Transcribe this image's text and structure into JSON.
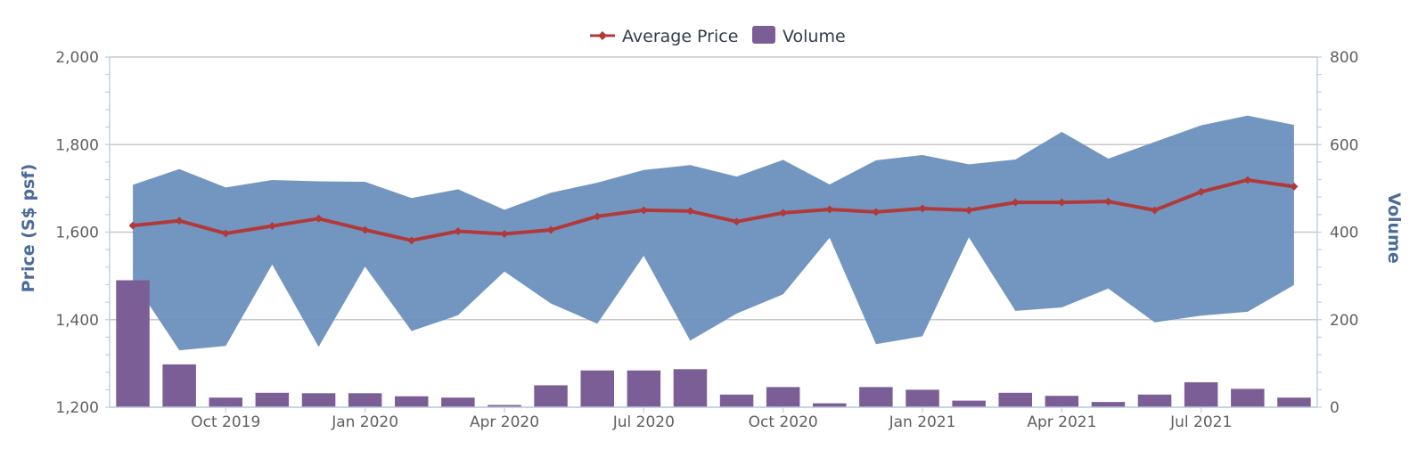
{
  "chart_data": {
    "type": "line",
    "legend_position": "top-center",
    "grid": true,
    "colors": {
      "price_line": "#b03a3a",
      "band": "#6b90be",
      "volume": "#7b5e96",
      "axis_title": "#4a6b9b"
    },
    "x": [
      "Aug 2019",
      "Sep 2019",
      "Oct 2019",
      "Nov 2019",
      "Dec 2019",
      "Jan 2020",
      "Feb 2020",
      "Mar 2020",
      "Apr 2020",
      "May 2020",
      "Jun 2020",
      "Jul 2020",
      "Aug 2020",
      "Sep 2020",
      "Oct 2020",
      "Nov 2020",
      "Dec 2020",
      "Jan 2021",
      "Feb 2021",
      "Mar 2021",
      "Apr 2021",
      "May 2021",
      "Jun 2021",
      "Jul 2021",
      "Aug 2021",
      "Sep 2021"
    ],
    "x_tick_labels": [
      "Oct 2019",
      "Jan 2020",
      "Apr 2020",
      "Jul 2020",
      "Oct 2020",
      "Jan 2021",
      "Apr 2021",
      "Jul 2021"
    ],
    "left_axis": {
      "title": "Price (S$ psf)",
      "range": [
        1200,
        2000
      ],
      "ticks": [
        "1,200",
        "1,400",
        "1,600",
        "1,800",
        "2,000"
      ]
    },
    "right_axis": {
      "title": "Volume",
      "range": [
        0,
        800
      ],
      "ticks": [
        "0",
        "200",
        "400",
        "600",
        "800"
      ]
    },
    "series": [
      {
        "name": "Average Price",
        "type": "line",
        "axis": "left",
        "values": [
          1615,
          1626,
          1597,
          1614,
          1631,
          1605,
          1581,
          1602,
          1596,
          1605,
          1636,
          1650,
          1648,
          1624,
          1644,
          1652,
          1646,
          1654,
          1650,
          1668,
          1668,
          1670,
          1650,
          1692,
          1719,
          1704
        ]
      },
      {
        "name": "Volume",
        "type": "column",
        "axis": "right",
        "values": [
          290,
          98,
          22,
          33,
          32,
          32,
          25,
          22,
          5,
          50,
          84,
          84,
          87,
          29,
          46,
          9,
          46,
          40,
          15,
          33,
          26,
          12,
          29,
          57,
          42,
          22
        ]
      },
      {
        "type": "arearange",
        "axis": "left",
        "low": [
          1490,
          1330,
          1340,
          1526,
          1338,
          1521,
          1374,
          1410,
          1510,
          1437,
          1391,
          1546,
          1352,
          1414,
          1458,
          1587,
          1344,
          1362,
          1588,
          1420,
          1428,
          1471,
          1394,
          1409,
          1418,
          1479
        ],
        "high": [
          1708,
          1744,
          1702,
          1719,
          1716,
          1715,
          1678,
          1698,
          1651,
          1690,
          1713,
          1742,
          1753,
          1727,
          1765,
          1709,
          1764,
          1776,
          1755,
          1766,
          1829,
          1768,
          1806,
          1844,
          1866,
          1845
        ]
      }
    ]
  }
}
